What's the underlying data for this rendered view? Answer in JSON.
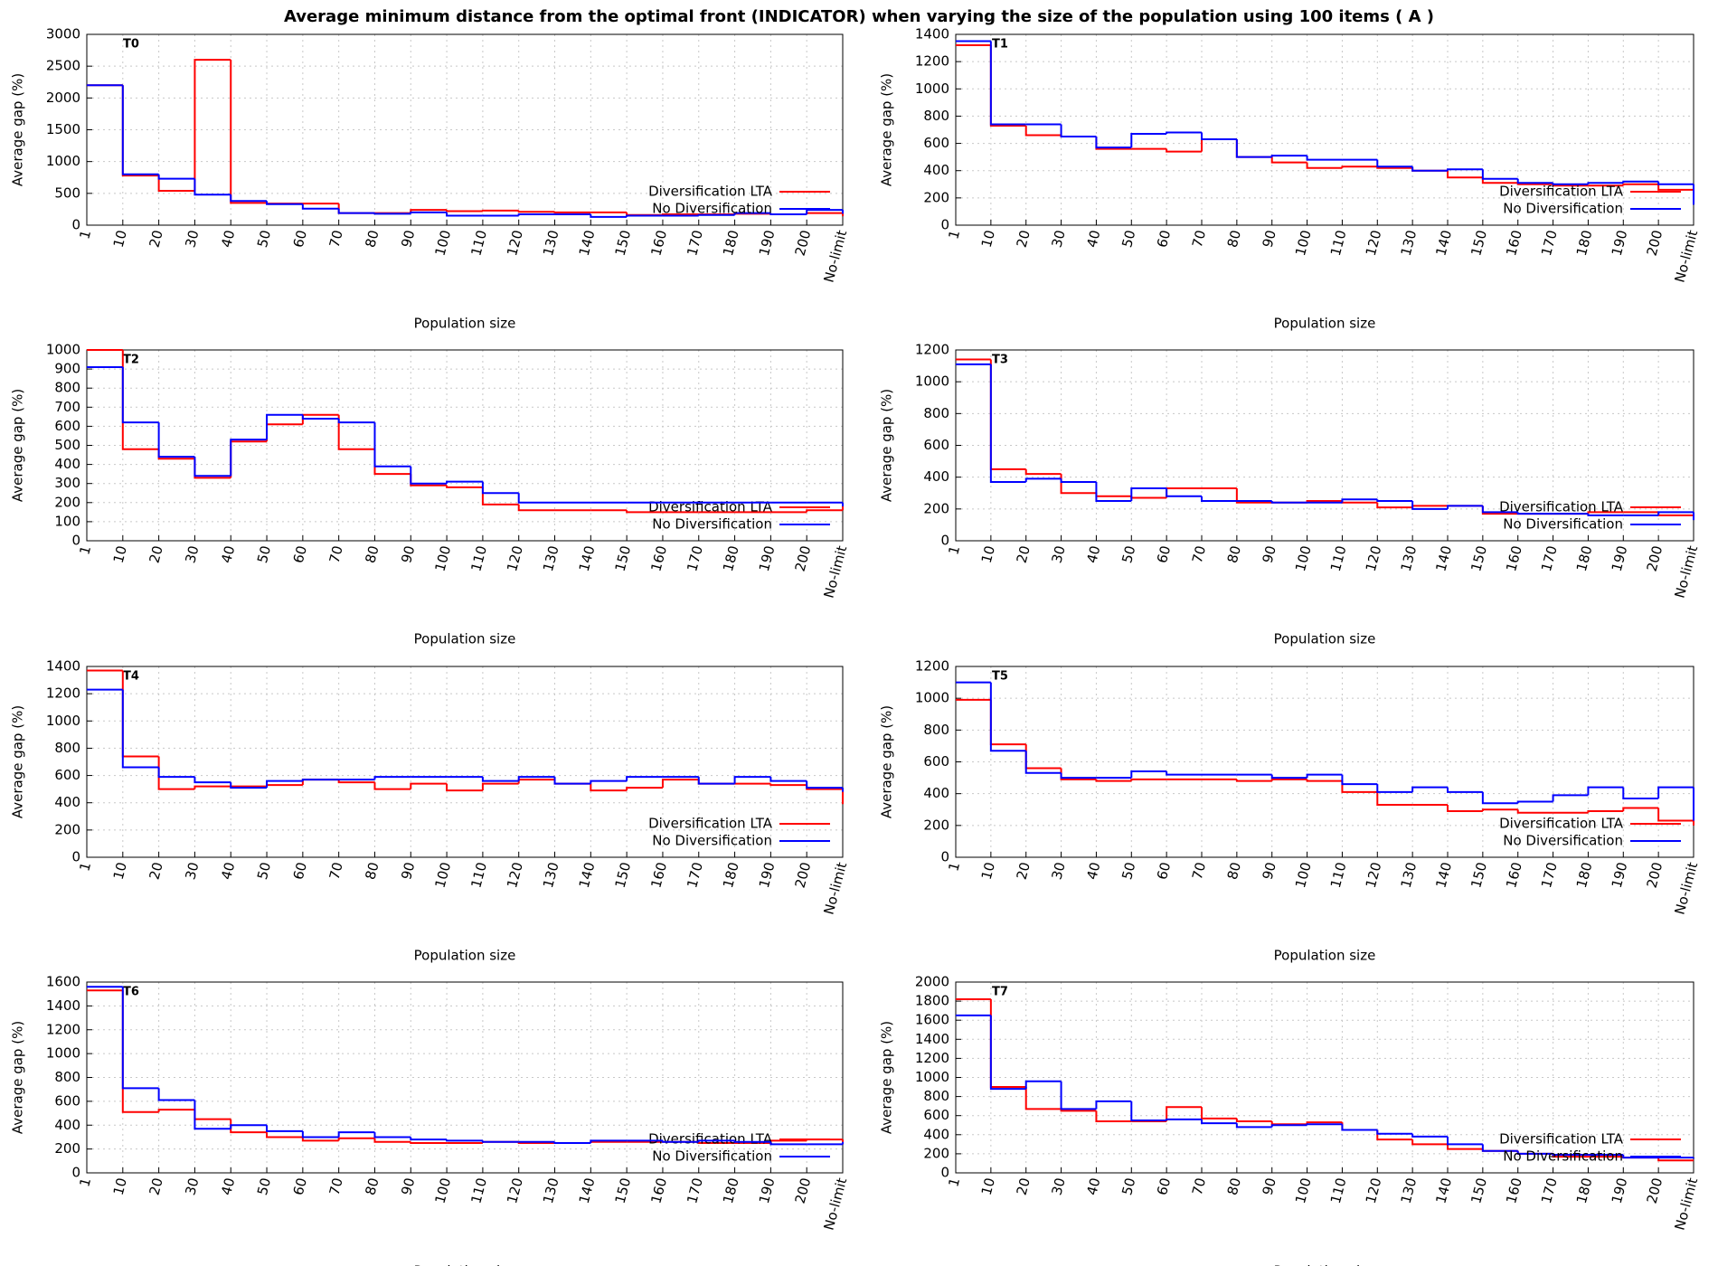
{
  "title": "Average minimum distance from the optimal front (INDICATOR) when varying the size of the population using 100 items ( A )",
  "chart_data": [
    {
      "type": "line",
      "title": "T0",
      "x_label": "Population size",
      "y_label": "Average gap (%)",
      "categories": [
        "1",
        "10",
        "20",
        "30",
        "40",
        "50",
        "60",
        "70",
        "80",
        "90",
        "100",
        "110",
        "120",
        "130",
        "140",
        "150",
        "160",
        "170",
        "180",
        "190",
        "200",
        "No-limit"
      ],
      "ylim": [
        0,
        3000
      ],
      "yticks": [
        0,
        500,
        1000,
        1500,
        2000,
        2500,
        3000
      ],
      "grid": true,
      "legend": "lower right",
      "series": [
        {
          "name": "Diversification LTA",
          "color": "#ff0000",
          "values": [
            2200,
            780,
            540,
            2600,
            350,
            340,
            340,
            190,
            190,
            240,
            220,
            230,
            210,
            200,
            200,
            160,
            170,
            170,
            180,
            170,
            190,
            140
          ]
        },
        {
          "name": "No Diversification",
          "color": "#0000ff",
          "values": [
            2200,
            800,
            730,
            480,
            380,
            330,
            260,
            190,
            180,
            200,
            150,
            150,
            170,
            170,
            130,
            150,
            150,
            160,
            190,
            170,
            240,
            180
          ]
        }
      ]
    },
    {
      "type": "line",
      "title": "T1",
      "x_label": "Population size",
      "y_label": "Average gap (%)",
      "categories": [
        "1",
        "10",
        "20",
        "30",
        "40",
        "50",
        "60",
        "70",
        "80",
        "90",
        "100",
        "110",
        "120",
        "130",
        "140",
        "150",
        "160",
        "170",
        "180",
        "190",
        "200",
        "No-limit"
      ],
      "ylim": [
        0,
        1400
      ],
      "yticks": [
        0,
        200,
        400,
        600,
        800,
        1000,
        1200,
        1400
      ],
      "grid": true,
      "legend": "lower right",
      "series": [
        {
          "name": "Diversification LTA",
          "color": "#ff0000",
          "values": [
            1320,
            730,
            660,
            650,
            560,
            560,
            540,
            630,
            500,
            460,
            420,
            430,
            420,
            400,
            350,
            310,
            300,
            290,
            290,
            300,
            260,
            250
          ]
        },
        {
          "name": "No Diversification",
          "color": "#0000ff",
          "values": [
            1350,
            740,
            740,
            650,
            570,
            670,
            680,
            630,
            500,
            510,
            480,
            480,
            430,
            400,
            410,
            340,
            310,
            300,
            310,
            320,
            300,
            150
          ]
        }
      ]
    },
    {
      "type": "line",
      "title": "T2",
      "x_label": "Population size",
      "y_label": "Average gap (%)",
      "categories": [
        "1",
        "10",
        "20",
        "30",
        "40",
        "50",
        "60",
        "70",
        "80",
        "90",
        "100",
        "110",
        "120",
        "130",
        "140",
        "150",
        "160",
        "170",
        "180",
        "190",
        "200",
        "No-limit"
      ],
      "ylim": [
        0,
        1000
      ],
      "yticks": [
        0,
        100,
        200,
        300,
        400,
        500,
        600,
        700,
        800,
        900,
        1000
      ],
      "grid": true,
      "legend": "lower right",
      "series": [
        {
          "name": "Diversification LTA",
          "color": "#ff0000",
          "values": [
            1000,
            480,
            430,
            330,
            520,
            610,
            660,
            480,
            350,
            290,
            280,
            190,
            160,
            160,
            160,
            150,
            150,
            150,
            150,
            150,
            160,
            180
          ]
        },
        {
          "name": "No Diversification",
          "color": "#0000ff",
          "values": [
            910,
            620,
            440,
            340,
            530,
            660,
            640,
            620,
            390,
            300,
            310,
            250,
            200,
            200,
            200,
            200,
            200,
            200,
            200,
            200,
            200,
            180
          ]
        }
      ]
    },
    {
      "type": "line",
      "title": "T3",
      "x_label": "Population size",
      "y_label": "Average gap (%)",
      "categories": [
        "1",
        "10",
        "20",
        "30",
        "40",
        "50",
        "60",
        "70",
        "80",
        "90",
        "100",
        "110",
        "120",
        "130",
        "140",
        "150",
        "160",
        "170",
        "180",
        "190",
        "200",
        "No-limit"
      ],
      "ylim": [
        0,
        1200
      ],
      "yticks": [
        0,
        200,
        400,
        600,
        800,
        1000,
        1200
      ],
      "grid": true,
      "legend": "lower right",
      "series": [
        {
          "name": "Diversification LTA",
          "color": "#ff0000",
          "values": [
            1140,
            450,
            420,
            300,
            280,
            270,
            330,
            330,
            240,
            240,
            250,
            240,
            210,
            220,
            220,
            170,
            170,
            170,
            180,
            180,
            160,
            150
          ]
        },
        {
          "name": "No Diversification",
          "color": "#0000ff",
          "values": [
            1110,
            370,
            390,
            370,
            250,
            330,
            280,
            250,
            250,
            240,
            240,
            260,
            250,
            200,
            220,
            180,
            170,
            170,
            160,
            160,
            180,
            130
          ]
        }
      ]
    },
    {
      "type": "line",
      "title": "T4",
      "x_label": "Population size",
      "y_label": "Average gap (%)",
      "categories": [
        "1",
        "10",
        "20",
        "30",
        "40",
        "50",
        "60",
        "70",
        "80",
        "90",
        "100",
        "110",
        "120",
        "130",
        "140",
        "150",
        "160",
        "170",
        "180",
        "190",
        "200",
        "No-limit"
      ],
      "ylim": [
        0,
        1400
      ],
      "yticks": [
        0,
        200,
        400,
        600,
        800,
        1000,
        1200,
        1400
      ],
      "grid": true,
      "legend": "lower right",
      "series": [
        {
          "name": "Diversification LTA",
          "color": "#ff0000",
          "values": [
            1370,
            740,
            500,
            520,
            520,
            530,
            570,
            550,
            500,
            540,
            490,
            540,
            570,
            540,
            490,
            510,
            570,
            540,
            540,
            530,
            500,
            390
          ]
        },
        {
          "name": "No Diversification",
          "color": "#0000ff",
          "values": [
            1230,
            660,
            590,
            550,
            510,
            560,
            570,
            570,
            590,
            590,
            590,
            560,
            590,
            540,
            560,
            590,
            590,
            540,
            590,
            560,
            510,
            480
          ]
        }
      ]
    },
    {
      "type": "line",
      "title": "T5",
      "x_label": "Population size",
      "y_label": "Average gap (%)",
      "categories": [
        "1",
        "10",
        "20",
        "30",
        "40",
        "50",
        "60",
        "70",
        "80",
        "90",
        "100",
        "110",
        "120",
        "130",
        "140",
        "150",
        "160",
        "170",
        "180",
        "190",
        "200",
        "No-limit"
      ],
      "ylim": [
        0,
        1200
      ],
      "yticks": [
        0,
        200,
        400,
        600,
        800,
        1000,
        1200
      ],
      "grid": true,
      "legend": "lower right",
      "series": [
        {
          "name": "Diversification LTA",
          "color": "#ff0000",
          "values": [
            990,
            710,
            560,
            490,
            480,
            490,
            490,
            490,
            480,
            490,
            480,
            410,
            330,
            330,
            290,
            300,
            280,
            280,
            290,
            310,
            230,
            200
          ]
        },
        {
          "name": "No Diversification",
          "color": "#0000ff",
          "values": [
            1100,
            670,
            530,
            500,
            500,
            540,
            520,
            520,
            520,
            500,
            520,
            460,
            410,
            440,
            410,
            340,
            350,
            390,
            440,
            370,
            440,
            230
          ]
        }
      ]
    },
    {
      "type": "line",
      "title": "T6",
      "x_label": "Population size",
      "y_label": "Average gap (%)",
      "categories": [
        "1",
        "10",
        "20",
        "30",
        "40",
        "50",
        "60",
        "70",
        "80",
        "90",
        "100",
        "110",
        "120",
        "130",
        "140",
        "150",
        "160",
        "170",
        "180",
        "190",
        "200",
        "No-limit"
      ],
      "ylim": [
        0,
        1600
      ],
      "yticks": [
        0,
        200,
        400,
        600,
        800,
        1000,
        1200,
        1400,
        1600
      ],
      "grid": true,
      "legend": "lower right",
      "series": [
        {
          "name": "Diversification LTA",
          "color": "#ff0000",
          "values": [
            1530,
            510,
            530,
            450,
            340,
            300,
            270,
            290,
            260,
            250,
            250,
            260,
            250,
            250,
            260,
            260,
            260,
            250,
            250,
            270,
            280,
            240
          ]
        },
        {
          "name": "No Diversification",
          "color": "#0000ff",
          "values": [
            1560,
            710,
            610,
            370,
            400,
            350,
            300,
            340,
            300,
            280,
            270,
            260,
            260,
            250,
            270,
            270,
            260,
            270,
            260,
            240,
            240,
            260
          ]
        }
      ]
    },
    {
      "type": "line",
      "title": "T7",
      "x_label": "Population size",
      "y_label": "Average gap (%)",
      "categories": [
        "1",
        "10",
        "20",
        "30",
        "40",
        "50",
        "60",
        "70",
        "80",
        "90",
        "100",
        "110",
        "120",
        "130",
        "140",
        "150",
        "160",
        "170",
        "180",
        "190",
        "200",
        "No-limit"
      ],
      "ylim": [
        0,
        2000
      ],
      "yticks": [
        0,
        200,
        400,
        600,
        800,
        1000,
        1200,
        1400,
        1600,
        1800,
        2000
      ],
      "grid": true,
      "legend": "lower right",
      "series": [
        {
          "name": "Diversification LTA",
          "color": "#ff0000",
          "values": [
            1820,
            900,
            670,
            650,
            540,
            540,
            690,
            570,
            540,
            510,
            530,
            450,
            350,
            300,
            250,
            230,
            200,
            170,
            170,
            160,
            130,
            130
          ]
        },
        {
          "name": "No Diversification",
          "color": "#0000ff",
          "values": [
            1650,
            880,
            960,
            670,
            750,
            550,
            560,
            520,
            480,
            500,
            510,
            450,
            410,
            380,
            300,
            230,
            200,
            190,
            190,
            160,
            160,
            150
          ]
        }
      ]
    }
  ]
}
